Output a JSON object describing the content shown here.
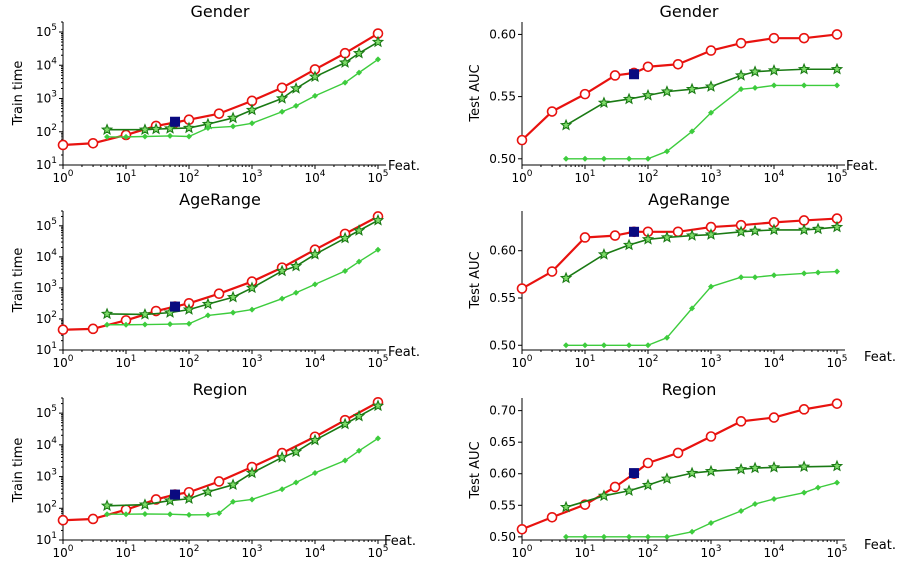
{
  "x_axis_label": "Feat.",
  "legend": null,
  "colors": {
    "red": "#e8120f",
    "dark_green": "#1a7a14",
    "light_green": "#3dcc3d",
    "navy": "#0a0a80"
  },
  "chart_data": [
    {
      "type": "line",
      "title": "Gender",
      "ylabel": "Train time",
      "xlabel": "Feat.",
      "xscale": "log",
      "yscale": "log",
      "xlim": [
        1,
        100000
      ],
      "ylim": [
        10,
        200000
      ],
      "xticks": [
        1,
        10,
        100,
        1000,
        10000,
        100000
      ],
      "xtick_labels": [
        "10^0",
        "10^1",
        "10^2",
        "10^3",
        "10^4",
        "10^5"
      ],
      "yticks": [
        10,
        100,
        1000,
        10000,
        100000
      ],
      "ytick_labels": [
        "10^1",
        "10^2",
        "10^3",
        "10^4",
        "10^5"
      ],
      "series": [
        {
          "color": "#e8120f",
          "marker": "open-circle",
          "x": [
            1,
            3,
            10,
            30,
            60,
            100,
            300,
            1000,
            3000,
            10000,
            30000,
            100000
          ],
          "y": [
            40,
            45,
            80,
            150,
            190,
            230,
            350,
            850,
            2100,
            7500,
            23000,
            90000
          ]
        },
        {
          "color": "#1a7a14",
          "marker": "star",
          "x": [
            5,
            20,
            30,
            50,
            100,
            200,
            500,
            1000,
            3000,
            5000,
            10000,
            30000,
            50000,
            100000
          ],
          "y": [
            115,
            115,
            120,
            125,
            130,
            170,
            260,
            450,
            1000,
            2000,
            4500,
            12000,
            23000,
            50000
          ]
        },
        {
          "color": "#3dcc3d",
          "marker": "small-diamond",
          "x": [
            5,
            10,
            20,
            50,
            100,
            200,
            500,
            1000,
            3000,
            5000,
            10000,
            30000,
            50000,
            100000
          ],
          "y": [
            70,
            70,
            72,
            75,
            72,
            130,
            145,
            180,
            400,
            600,
            1200,
            3000,
            6000,
            15000
          ]
        },
        {
          "color": "#0a0a80",
          "marker": "square",
          "x": [
            60
          ],
          "y": [
            200
          ]
        }
      ]
    },
    {
      "type": "line",
      "title": "Gender",
      "ylabel": "Test AUC",
      "xlabel": "Feat.",
      "xscale": "log",
      "yscale": "linear",
      "xlim": [
        1,
        100000
      ],
      "ylim": [
        0.495,
        0.61
      ],
      "xticks": [
        1,
        10,
        100,
        1000,
        10000,
        100000
      ],
      "xtick_labels": [
        "10^0",
        "10^1",
        "10^2",
        "10^3",
        "10^4",
        "10^5"
      ],
      "yticks": [
        0.5,
        0.55,
        0.6
      ],
      "ytick_labels": [
        "0.50",
        "0.55",
        "0.60"
      ],
      "series": [
        {
          "color": "#e8120f",
          "marker": "open-circle",
          "x": [
            1,
            3,
            10,
            30,
            60,
            100,
            300,
            1000,
            3000,
            10000,
            30000,
            100000
          ],
          "y": [
            0.515,
            0.538,
            0.552,
            0.567,
            0.569,
            0.574,
            0.576,
            0.587,
            0.593,
            0.597,
            0.597,
            0.6
          ]
        },
        {
          "color": "#1a7a14",
          "marker": "star",
          "x": [
            5,
            20,
            50,
            100,
            200,
            500,
            1000,
            3000,
            5000,
            10000,
            30000,
            100000
          ],
          "y": [
            0.527,
            0.545,
            0.548,
            0.551,
            0.554,
            0.556,
            0.558,
            0.567,
            0.57,
            0.571,
            0.572,
            0.572
          ]
        },
        {
          "color": "#3dcc3d",
          "marker": "small-diamond",
          "x": [
            5,
            10,
            20,
            50,
            100,
            200,
            500,
            1000,
            3000,
            5000,
            10000,
            30000,
            100000
          ],
          "y": [
            0.5,
            0.5,
            0.5,
            0.5,
            0.5,
            0.506,
            0.522,
            0.537,
            0.556,
            0.557,
            0.559,
            0.559,
            0.559
          ]
        },
        {
          "color": "#0a0a80",
          "marker": "square",
          "x": [
            60
          ],
          "y": [
            0.568
          ]
        }
      ]
    },
    {
      "type": "line",
      "title": "AgeRange",
      "ylabel": "Train time",
      "xlabel": "Feat.",
      "xscale": "log",
      "yscale": "log",
      "xlim": [
        1,
        100000
      ],
      "ylim": [
        10,
        300000
      ],
      "xticks": [
        1,
        10,
        100,
        1000,
        10000,
        100000
      ],
      "xtick_labels": [
        "10^0",
        "10^1",
        "10^2",
        "10^3",
        "10^4",
        "10^5"
      ],
      "yticks": [
        10,
        100,
        1000,
        10000,
        100000
      ],
      "ytick_labels": [
        "10^1",
        "10^2",
        "10^3",
        "10^4",
        "10^5"
      ],
      "series": [
        {
          "color": "#e8120f",
          "marker": "open-circle",
          "x": [
            1,
            3,
            10,
            30,
            60,
            100,
            300,
            1000,
            3000,
            10000,
            30000,
            100000
          ],
          "y": [
            45,
            48,
            90,
            180,
            250,
            320,
            650,
            1600,
            4500,
            17000,
            55000,
            200000
          ]
        },
        {
          "color": "#1a7a14",
          "marker": "star",
          "x": [
            5,
            20,
            50,
            100,
            200,
            500,
            1000,
            3000,
            5000,
            10000,
            30000,
            50000,
            100000
          ],
          "y": [
            145,
            140,
            160,
            200,
            300,
            500,
            1000,
            3500,
            5000,
            12000,
            40000,
            70000,
            150000
          ]
        },
        {
          "color": "#3dcc3d",
          "marker": "small-diamond",
          "x": [
            5,
            10,
            20,
            50,
            100,
            200,
            500,
            1000,
            3000,
            5000,
            10000,
            30000,
            50000,
            100000
          ],
          "y": [
            65,
            65,
            66,
            68,
            70,
            130,
            160,
            200,
            450,
            700,
            1300,
            3500,
            7000,
            17000
          ]
        },
        {
          "color": "#0a0a80",
          "marker": "square",
          "x": [
            60
          ],
          "y": [
            250
          ]
        }
      ]
    },
    {
      "type": "line",
      "title": "AgeRange",
      "ylabel": "Test AUC",
      "xlabel": "Feat.",
      "xscale": "log",
      "yscale": "linear",
      "xlim": [
        1,
        100000
      ],
      "ylim": [
        0.495,
        0.642
      ],
      "xticks": [
        1,
        10,
        100,
        1000,
        10000,
        100000
      ],
      "xtick_labels": [
        "10^0",
        "10^1",
        "10^2",
        "10^3",
        "10^4",
        "10^5"
      ],
      "yticks": [
        0.5,
        0.55,
        0.6
      ],
      "ytick_labels": [
        "0.50",
        "0.55",
        "0.60"
      ],
      "series": [
        {
          "color": "#e8120f",
          "marker": "open-circle",
          "x": [
            1,
            3,
            10,
            30,
            60,
            100,
            300,
            1000,
            3000,
            10000,
            30000,
            100000
          ],
          "y": [
            0.56,
            0.578,
            0.614,
            0.616,
            0.62,
            0.62,
            0.62,
            0.625,
            0.627,
            0.63,
            0.632,
            0.634
          ]
        },
        {
          "color": "#1a7a14",
          "marker": "star",
          "x": [
            5,
            20,
            50,
            100,
            200,
            500,
            1000,
            3000,
            5000,
            10000,
            30000,
            50000,
            100000
          ],
          "y": [
            0.571,
            0.596,
            0.606,
            0.612,
            0.614,
            0.616,
            0.617,
            0.62,
            0.621,
            0.622,
            0.622,
            0.623,
            0.625
          ]
        },
        {
          "color": "#3dcc3d",
          "marker": "small-diamond",
          "x": [
            5,
            10,
            20,
            50,
            100,
            200,
            500,
            1000,
            3000,
            5000,
            10000,
            30000,
            50000,
            100000
          ],
          "y": [
            0.5,
            0.5,
            0.5,
            0.5,
            0.5,
            0.508,
            0.539,
            0.562,
            0.572,
            0.572,
            0.574,
            0.576,
            0.577,
            0.578
          ]
        },
        {
          "color": "#0a0a80",
          "marker": "square",
          "x": [
            60
          ],
          "y": [
            0.62
          ]
        }
      ]
    },
    {
      "type": "line",
      "title": "Region",
      "ylabel": "Train time",
      "xlabel": "Feat.",
      "xscale": "log",
      "yscale": "log",
      "xlim": [
        1,
        100000
      ],
      "ylim": [
        10,
        300000
      ],
      "xticks": [
        1,
        10,
        100,
        1000,
        10000,
        100000
      ],
      "xtick_labels": [
        "10^0",
        "10^1",
        "10^2",
        "10^3",
        "10^4",
        "10^5"
      ],
      "yticks": [
        10,
        100,
        1000,
        10000,
        100000
      ],
      "ytick_labels": [
        "10^1",
        "10^2",
        "10^3",
        "10^4",
        "10^5"
      ],
      "series": [
        {
          "color": "#e8120f",
          "marker": "open-circle",
          "x": [
            1,
            3,
            10,
            30,
            60,
            100,
            300,
            1000,
            3000,
            10000,
            30000,
            100000
          ],
          "y": [
            42,
            46,
            90,
            190,
            270,
            320,
            700,
            2000,
            5500,
            18000,
            60000,
            220000
          ]
        },
        {
          "color": "#1a7a14",
          "marker": "star",
          "x": [
            5,
            20,
            50,
            100,
            200,
            500,
            1000,
            3000,
            5000,
            10000,
            30000,
            50000,
            100000
          ],
          "y": [
            120,
            130,
            175,
            200,
            330,
            550,
            1300,
            4000,
            6000,
            14000,
            45000,
            80000,
            170000
          ]
        },
        {
          "color": "#3dcc3d",
          "marker": "small-diamond",
          "x": [
            5,
            10,
            20,
            50,
            100,
            200,
            300,
            500,
            1000,
            3000,
            5000,
            10000,
            30000,
            50000,
            100000
          ],
          "y": [
            65,
            65,
            66,
            65,
            62,
            63,
            70,
            160,
            190,
            400,
            650,
            1300,
            3200,
            6500,
            16000
          ]
        },
        {
          "color": "#0a0a80",
          "marker": "square",
          "x": [
            60
          ],
          "y": [
            270
          ]
        }
      ]
    },
    {
      "type": "line",
      "title": "Region",
      "ylabel": "Test AUC",
      "xlabel": "Feat.",
      "xscale": "log",
      "yscale": "linear",
      "xlim": [
        1,
        100000
      ],
      "ylim": [
        0.495,
        0.72
      ],
      "xticks": [
        1,
        10,
        100,
        1000,
        10000,
        100000
      ],
      "xtick_labels": [
        "10^0",
        "10^1",
        "10^2",
        "10^3",
        "10^4",
        "10^5"
      ],
      "yticks": [
        0.5,
        0.55,
        0.6,
        0.65,
        0.7
      ],
      "ytick_labels": [
        "0.50",
        "0.55",
        "0.60",
        "0.65",
        "0.70"
      ],
      "series": [
        {
          "color": "#e8120f",
          "marker": "open-circle",
          "x": [
            1,
            3,
            10,
            30,
            60,
            100,
            300,
            1000,
            3000,
            10000,
            30000,
            100000
          ],
          "y": [
            0.512,
            0.531,
            0.551,
            0.579,
            0.6,
            0.617,
            0.633,
            0.659,
            0.683,
            0.689,
            0.702,
            0.711
          ]
        },
        {
          "color": "#1a7a14",
          "marker": "star",
          "x": [
            5,
            20,
            50,
            100,
            200,
            500,
            1000,
            3000,
            5000,
            10000,
            30000,
            100000
          ],
          "y": [
            0.547,
            0.565,
            0.573,
            0.582,
            0.592,
            0.601,
            0.604,
            0.607,
            0.609,
            0.61,
            0.611,
            0.612
          ]
        },
        {
          "color": "#3dcc3d",
          "marker": "small-diamond",
          "x": [
            5,
            10,
            20,
            50,
            100,
            200,
            500,
            1000,
            3000,
            5000,
            10000,
            30000,
            50000,
            100000
          ],
          "y": [
            0.5,
            0.5,
            0.5,
            0.5,
            0.5,
            0.5,
            0.508,
            0.522,
            0.541,
            0.552,
            0.56,
            0.57,
            0.578,
            0.586
          ]
        },
        {
          "color": "#0a0a80",
          "marker": "square",
          "x": [
            60
          ],
          "y": [
            0.601
          ]
        }
      ]
    }
  ]
}
